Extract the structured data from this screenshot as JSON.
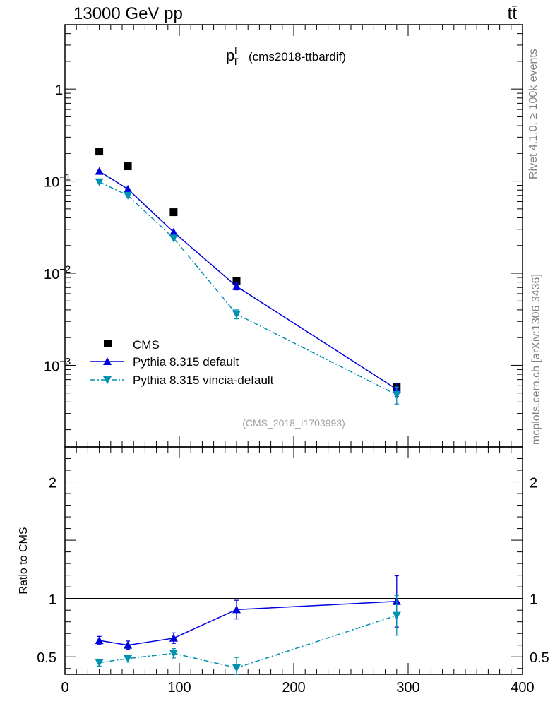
{
  "header": {
    "energy_label": "13000 GeV pp",
    "process_label": "tt̄"
  },
  "side_labels": {
    "rivet": "Rivet 4.1.0, ≥ 100k events",
    "source": "mcplots.cern.ch [arXiv:1306.3436]"
  },
  "colors": {
    "cms": "#000000",
    "pythia_default": "#0000dd",
    "pythia_vincia": "#0090b0",
    "axis": "#000000",
    "watermark": "#a0a0a0"
  },
  "chart_data": [
    {
      "type": "line",
      "panel": "main",
      "title": "p",
      "title_sup": "l",
      "title_sub": "T",
      "title_suffix": "(cms2018-ttbardif)",
      "watermark": "(CMS_2018_I1703993)",
      "yscale": "log",
      "ylim": [
        0.00013,
        5
      ],
      "xlim": [
        0,
        400
      ],
      "y_tick_labels": [
        {
          "value": 1,
          "base": "1",
          "exp": ""
        },
        {
          "value": 0.1,
          "base": "10",
          "exp": "−1"
        },
        {
          "value": 0.01,
          "base": "10",
          "exp": "−2"
        },
        {
          "value": 0.001,
          "base": "10",
          "exp": "−3"
        }
      ],
      "legend_position": "bottom-left",
      "series": [
        {
          "name": "CMS",
          "marker": "square",
          "x": [
            30,
            55,
            95,
            150,
            290
          ],
          "y": [
            0.21,
            0.145,
            0.046,
            0.0082,
            0.00058
          ]
        },
        {
          "name": "Pythia 8.315 default",
          "marker": "triangle-up",
          "line": "solid",
          "x": [
            30,
            55,
            95,
            150,
            290
          ],
          "y": [
            0.128,
            0.082,
            0.028,
            0.0072,
            0.00055
          ],
          "yerr": [
            0,
            0,
            0,
            0.0006,
            9e-05
          ]
        },
        {
          "name": "Pythia 8.315 vincia-default",
          "marker": "triangle-down",
          "line": "dashdot",
          "x": [
            30,
            55,
            95,
            150,
            290
          ],
          "y": [
            0.098,
            0.07,
            0.024,
            0.0036,
            0.00048
          ],
          "yerr": [
            0,
            0,
            0,
            0.0004,
            0.0001
          ]
        }
      ]
    },
    {
      "type": "line",
      "panel": "ratio",
      "ylabel": "Ratio to CMS",
      "ylim": [
        0.35,
        2.3
      ],
      "xlim": [
        0,
        400
      ],
      "y_tick_labels": [
        "2",
        "1",
        "0.5"
      ],
      "y_tick_values": [
        2,
        1,
        0.5
      ],
      "x_tick_labels": [
        "0",
        "100",
        "200",
        "300",
        "400"
      ],
      "x_tick_values": [
        0,
        100,
        200,
        300,
        400
      ],
      "reference_line": 1,
      "series": [
        {
          "name": "Pythia 8.315 default",
          "x": [
            30,
            55,
            95,
            150,
            290
          ],
          "y": [
            0.64,
            0.6,
            0.66,
            0.905,
            0.975
          ],
          "yerr": [
            0.035,
            0.035,
            0.045,
            0.08,
            0.22
          ]
        },
        {
          "name": "Pythia 8.315 vincia-default",
          "x": [
            30,
            55,
            95,
            150,
            290
          ],
          "y": [
            0.45,
            0.485,
            0.53,
            0.405,
            0.855
          ],
          "yerr": [
            0.03,
            0.03,
            0.04,
            0.09,
            0.17
          ]
        }
      ]
    }
  ]
}
